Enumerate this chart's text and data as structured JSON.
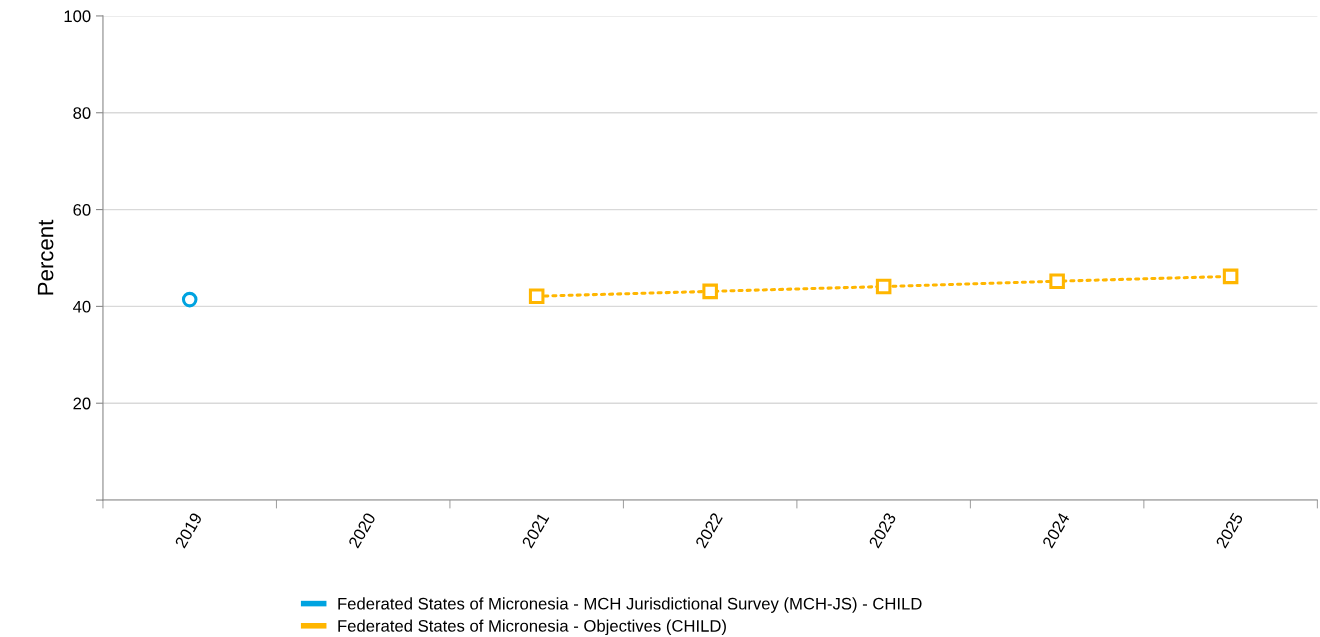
{
  "chart_data": {
    "type": "line",
    "ylabel": "Percent",
    "categories": [
      "2019",
      "2020",
      "2021",
      "2022",
      "2023",
      "2024",
      "2025"
    ],
    "series": [
      {
        "name": "Federated States of Micronesia - MCH Jurisdictional Survey (MCH-JS) - CHILD",
        "color": "#00a3e0",
        "marker": "circle",
        "line_style": "solid",
        "values": [
          41.4,
          null,
          null,
          null,
          null,
          null,
          null
        ]
      },
      {
        "name": "Federated States of Micronesia - Objectives (CHILD)",
        "color": "#ffb600",
        "marker": "square",
        "line_style": "dotted",
        "values": [
          null,
          null,
          42.1,
          43.1,
          44.1,
          45.2,
          46.2
        ]
      }
    ],
    "ylim": [
      0,
      100
    ],
    "yticks": [
      {
        "value": 0,
        "label": null
      },
      20,
      40,
      60,
      80,
      100
    ],
    "grid": "y",
    "legend": "bottom"
  }
}
